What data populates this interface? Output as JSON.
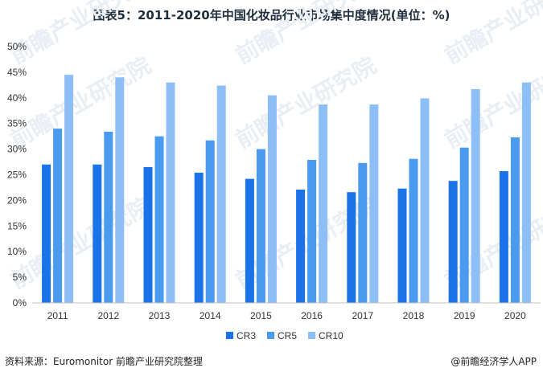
{
  "title": "图表5：2011-2020年中国化妆品行业市场集中度情况(单位：%)",
  "footer": {
    "source": "资料来源：Euromonitor 前瞻产业研究院整理",
    "brand": "@前瞻经济学人APP"
  },
  "watermark": "前瞻产业研究院",
  "colors": {
    "CR3": "#1a73e8",
    "CR5": "#4a9af0",
    "CR10": "#8dbef5"
  },
  "chart_data": {
    "type": "bar",
    "title": "图表5：2011-2020年中国化妆品行业市场集中度情况(单位：%)",
    "categories": [
      "2011",
      "2012",
      "2013",
      "2014",
      "2015",
      "2016",
      "2017",
      "2018",
      "2019",
      "2020"
    ],
    "series": [
      {
        "name": "CR3",
        "values": [
          27.0,
          27.0,
          26.5,
          25.4,
          24.2,
          22.1,
          21.6,
          22.3,
          23.8,
          25.7
        ]
      },
      {
        "name": "CR5",
        "values": [
          34.0,
          33.4,
          32.5,
          31.7,
          30.0,
          27.9,
          27.3,
          28.1,
          30.3,
          32.3
        ]
      },
      {
        "name": "CR10",
        "values": [
          44.5,
          44.0,
          43.0,
          42.4,
          40.5,
          38.7,
          38.7,
          39.9,
          41.7,
          43.0
        ]
      }
    ],
    "ylim": [
      0,
      50
    ],
    "yticks": [
      "0%",
      "5%",
      "10%",
      "15%",
      "20%",
      "25%",
      "30%",
      "35%",
      "40%",
      "45%",
      "50%"
    ],
    "xlabel": "",
    "ylabel": "",
    "legend": "bottom-center"
  }
}
